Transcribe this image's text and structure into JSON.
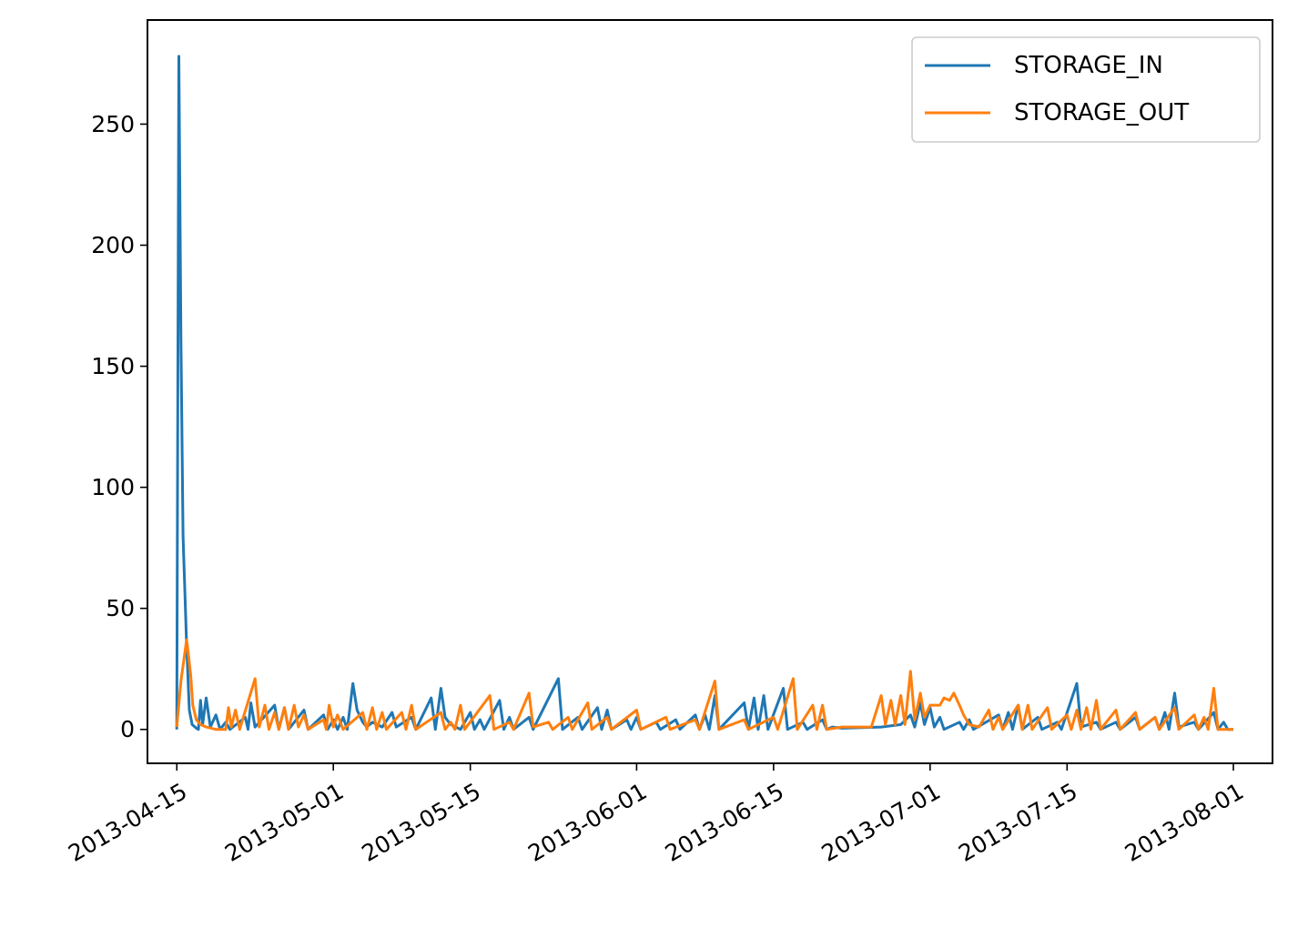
{
  "chart_data": {
    "type": "line",
    "title": "",
    "xlabel": "",
    "ylabel": "",
    "x_type": "date",
    "xlim": [
      "2013-04-12",
      "2013-08-05"
    ],
    "ylim": [
      -14,
      293
    ],
    "grid": false,
    "legend_position": "top-right",
    "x_ticks": [
      "2013-04-15",
      "2013-05-01",
      "2013-05-15",
      "2013-06-01",
      "2013-06-15",
      "2013-07-01",
      "2013-07-15",
      "2013-08-01"
    ],
    "y_ticks": [
      0,
      50,
      100,
      150,
      200,
      250
    ],
    "series": [
      {
        "name": "STORAGE_IN",
        "color": "#1f77b4",
        "points": [
          [
            "2013-04-15",
            0
          ],
          [
            "2013-04-15",
            278
          ],
          [
            "2013-04-15",
            160
          ],
          [
            "2013-04-15",
            80
          ],
          [
            "2013-04-16",
            35
          ],
          [
            "2013-04-16",
            8
          ],
          [
            "2013-04-16",
            2
          ],
          [
            "2013-04-17",
            0.5
          ],
          [
            "2013-04-17",
            0
          ],
          [
            "2013-04-17",
            12
          ],
          [
            "2013-04-17",
            2
          ],
          [
            "2013-04-18",
            13
          ],
          [
            "2013-04-18",
            1
          ],
          [
            "2013-04-19",
            6
          ],
          [
            "2013-04-19",
            0
          ],
          [
            "2013-04-20",
            3
          ],
          [
            "2013-04-20",
            0
          ],
          [
            "2013-04-22",
            5
          ],
          [
            "2013-04-22",
            0
          ],
          [
            "2013-04-22",
            11
          ],
          [
            "2013-04-23",
            1
          ],
          [
            "2013-04-25",
            10
          ],
          [
            "2013-04-25",
            0
          ],
          [
            "2013-04-26",
            9
          ],
          [
            "2013-04-26",
            0
          ],
          [
            "2013-04-28",
            8
          ],
          [
            "2013-04-28",
            0
          ],
          [
            "2013-04-30",
            6
          ],
          [
            "2013-04-30",
            0
          ],
          [
            "2013-05-01",
            4
          ],
          [
            "2013-05-01",
            0
          ],
          [
            "2013-05-02",
            5
          ],
          [
            "2013-05-02",
            0
          ],
          [
            "2013-05-03",
            19
          ],
          [
            "2013-05-03",
            8
          ],
          [
            "2013-05-04",
            3
          ],
          [
            "2013-05-04",
            1
          ],
          [
            "2013-05-05",
            3
          ],
          [
            "2013-05-06",
            1
          ],
          [
            "2013-05-07",
            7
          ],
          [
            "2013-05-07",
            1
          ],
          [
            "2013-05-09",
            5
          ],
          [
            "2013-05-09",
            0
          ],
          [
            "2013-05-11",
            13
          ],
          [
            "2013-05-11",
            0
          ],
          [
            "2013-05-12",
            17
          ],
          [
            "2013-05-12",
            5
          ],
          [
            "2013-05-13",
            2
          ],
          [
            "2013-05-14",
            0
          ],
          [
            "2013-05-15",
            7
          ],
          [
            "2013-05-15",
            0
          ],
          [
            "2013-05-16",
            4
          ],
          [
            "2013-05-16",
            0
          ],
          [
            "2013-05-18",
            12
          ],
          [
            "2013-05-18",
            0
          ],
          [
            "2013-05-19",
            5
          ],
          [
            "2013-05-19",
            0
          ],
          [
            "2013-05-21",
            5
          ],
          [
            "2013-05-21",
            0
          ],
          [
            "2013-05-24",
            21
          ],
          [
            "2013-05-24",
            0
          ],
          [
            "2013-05-26",
            5
          ],
          [
            "2013-05-26",
            0
          ],
          [
            "2013-05-28",
            9
          ],
          [
            "2013-05-28",
            0
          ],
          [
            "2013-05-29",
            8
          ],
          [
            "2013-05-29",
            0
          ],
          [
            "2013-05-31",
            4
          ],
          [
            "2013-05-31",
            0
          ],
          [
            "2013-06-01",
            5
          ],
          [
            "2013-06-01",
            0
          ],
          [
            "2013-06-03",
            3
          ],
          [
            "2013-06-03",
            0
          ],
          [
            "2013-06-05",
            4
          ],
          [
            "2013-06-05",
            0
          ],
          [
            "2013-06-07",
            6
          ],
          [
            "2013-06-07",
            0
          ],
          [
            "2013-06-08",
            6
          ],
          [
            "2013-06-08",
            0
          ],
          [
            "2013-06-09",
            14
          ],
          [
            "2013-06-09",
            0
          ],
          [
            "2013-06-12",
            11
          ],
          [
            "2013-06-12",
            0
          ],
          [
            "2013-06-13",
            13
          ],
          [
            "2013-06-13",
            0
          ],
          [
            "2013-06-14",
            14
          ],
          [
            "2013-06-14",
            0
          ],
          [
            "2013-06-16",
            17
          ],
          [
            "2013-06-16",
            0
          ],
          [
            "2013-06-18",
            3
          ],
          [
            "2013-06-18",
            0
          ],
          [
            "2013-06-20",
            4
          ],
          [
            "2013-06-20",
            0
          ],
          [
            "2013-06-21",
            1
          ],
          [
            "2013-06-22",
            0.5
          ],
          [
            "2013-06-26",
            1
          ],
          [
            "2013-06-28",
            2
          ],
          [
            "2013-06-29",
            6
          ],
          [
            "2013-06-29",
            1
          ],
          [
            "2013-06-30",
            11
          ],
          [
            "2013-06-30",
            2
          ],
          [
            "2013-07-01",
            9
          ],
          [
            "2013-07-01",
            1
          ],
          [
            "2013-07-02",
            5
          ],
          [
            "2013-07-02",
            0
          ],
          [
            "2013-07-04",
            3
          ],
          [
            "2013-07-04",
            0
          ],
          [
            "2013-07-05",
            4
          ],
          [
            "2013-07-05",
            0
          ],
          [
            "2013-07-08",
            6
          ],
          [
            "2013-07-08",
            0
          ],
          [
            "2013-07-09",
            7
          ],
          [
            "2013-07-09",
            0
          ],
          [
            "2013-07-10",
            10
          ],
          [
            "2013-07-10",
            0
          ],
          [
            "2013-07-12",
            5
          ],
          [
            "2013-07-12",
            0
          ],
          [
            "2013-07-14",
            3
          ],
          [
            "2013-07-14",
            0
          ],
          [
            "2013-07-16",
            19
          ],
          [
            "2013-07-16",
            1
          ],
          [
            "2013-07-18",
            3
          ],
          [
            "2013-07-18",
            0
          ],
          [
            "2013-07-20",
            3
          ],
          [
            "2013-07-20",
            0
          ],
          [
            "2013-07-22",
            5
          ],
          [
            "2013-07-22",
            0
          ],
          [
            "2013-07-24",
            5
          ],
          [
            "2013-07-24",
            0
          ],
          [
            "2013-07-25",
            7
          ],
          [
            "2013-07-25",
            0
          ],
          [
            "2013-07-26",
            15
          ],
          [
            "2013-07-26",
            1
          ],
          [
            "2013-07-28",
            3
          ],
          [
            "2013-07-28",
            0
          ],
          [
            "2013-07-30",
            7
          ],
          [
            "2013-07-30",
            0
          ],
          [
            "2013-07-31",
            3
          ],
          [
            "2013-07-31",
            0
          ],
          [
            "2013-08-01",
            0
          ]
        ]
      },
      {
        "name": "STORAGE_OUT",
        "color": "#ff7f0e",
        "points": [
          [
            "2013-04-15",
            1
          ],
          [
            "2013-04-15",
            20
          ],
          [
            "2013-04-16",
            37
          ],
          [
            "2013-04-16",
            30
          ],
          [
            "2013-04-16",
            22
          ],
          [
            "2013-04-16",
            10
          ],
          [
            "2013-04-17",
            4
          ],
          [
            "2013-04-17",
            2
          ],
          [
            "2013-04-18",
            1
          ],
          [
            "2013-04-19",
            0
          ],
          [
            "2013-04-20",
            0
          ],
          [
            "2013-04-20",
            9
          ],
          [
            "2013-04-20",
            1
          ],
          [
            "2013-04-21",
            8
          ],
          [
            "2013-04-21",
            0
          ],
          [
            "2013-04-23",
            21
          ],
          [
            "2013-04-23",
            1
          ],
          [
            "2013-04-24",
            10
          ],
          [
            "2013-04-24",
            0
          ],
          [
            "2013-04-25",
            7
          ],
          [
            "2013-04-25",
            0
          ],
          [
            "2013-04-26",
            9
          ],
          [
            "2013-04-26",
            0
          ],
          [
            "2013-04-27",
            10
          ],
          [
            "2013-04-27",
            1
          ],
          [
            "2013-04-28",
            6
          ],
          [
            "2013-04-28",
            0
          ],
          [
            "2013-04-30",
            4
          ],
          [
            "2013-04-30",
            0
          ],
          [
            "2013-04-30",
            10
          ],
          [
            "2013-05-01",
            1
          ],
          [
            "2013-05-01",
            6
          ],
          [
            "2013-05-02",
            0
          ],
          [
            "2013-05-04",
            7
          ],
          [
            "2013-05-04",
            0
          ],
          [
            "2013-05-05",
            9
          ],
          [
            "2013-05-05",
            0
          ],
          [
            "2013-05-06",
            7
          ],
          [
            "2013-05-06",
            0
          ],
          [
            "2013-05-08",
            7
          ],
          [
            "2013-05-08",
            0
          ],
          [
            "2013-05-09",
            10
          ],
          [
            "2013-05-09",
            0
          ],
          [
            "2013-05-12",
            7
          ],
          [
            "2013-05-12",
            0
          ],
          [
            "2013-05-13",
            3
          ],
          [
            "2013-05-13",
            0
          ],
          [
            "2013-05-14",
            10
          ],
          [
            "2013-05-14",
            0
          ],
          [
            "2013-05-17",
            14
          ],
          [
            "2013-05-17",
            0
          ],
          [
            "2013-05-19",
            3
          ],
          [
            "2013-05-19",
            0
          ],
          [
            "2013-05-21",
            15
          ],
          [
            "2013-05-21",
            1
          ],
          [
            "2013-05-23",
            3
          ],
          [
            "2013-05-23",
            0
          ],
          [
            "2013-05-25",
            5
          ],
          [
            "2013-05-25",
            0
          ],
          [
            "2013-05-27",
            11
          ],
          [
            "2013-05-27",
            0
          ],
          [
            "2013-05-29",
            5
          ],
          [
            "2013-05-29",
            0
          ],
          [
            "2013-06-01",
            8
          ],
          [
            "2013-06-01",
            0
          ],
          [
            "2013-06-04",
            5
          ],
          [
            "2013-06-04",
            0
          ],
          [
            "2013-06-07",
            4
          ],
          [
            "2013-06-07",
            0
          ],
          [
            "2013-06-09",
            20
          ],
          [
            "2013-06-09",
            0
          ],
          [
            "2013-06-12",
            4
          ],
          [
            "2013-06-12",
            0
          ],
          [
            "2013-06-15",
            5
          ],
          [
            "2013-06-15",
            0
          ],
          [
            "2013-06-17",
            21
          ],
          [
            "2013-06-17",
            0
          ],
          [
            "2013-06-19",
            10
          ],
          [
            "2013-06-19",
            0
          ],
          [
            "2013-06-20",
            10
          ],
          [
            "2013-06-20",
            0
          ],
          [
            "2013-06-22",
            1
          ],
          [
            "2013-06-25",
            1
          ],
          [
            "2013-06-26",
            14
          ],
          [
            "2013-06-26",
            2
          ],
          [
            "2013-06-27",
            12
          ],
          [
            "2013-06-27",
            2
          ],
          [
            "2013-06-28",
            14
          ],
          [
            "2013-06-28",
            2
          ],
          [
            "2013-06-29",
            24
          ],
          [
            "2013-06-29",
            4
          ],
          [
            "2013-06-30",
            15
          ],
          [
            "2013-06-30",
            5
          ],
          [
            "2013-07-01",
            10
          ],
          [
            "2013-07-02",
            10
          ],
          [
            "2013-07-02",
            13
          ],
          [
            "2013-07-03",
            12
          ],
          [
            "2013-07-03",
            15
          ],
          [
            "2013-07-04",
            10
          ],
          [
            "2013-07-04",
            6
          ],
          [
            "2013-07-05",
            2
          ],
          [
            "2013-07-06",
            1
          ],
          [
            "2013-07-07",
            8
          ],
          [
            "2013-07-07",
            0
          ],
          [
            "2013-07-08",
            5
          ],
          [
            "2013-07-08",
            0
          ],
          [
            "2013-07-10",
            10
          ],
          [
            "2013-07-10",
            0
          ],
          [
            "2013-07-11",
            10
          ],
          [
            "2013-07-11",
            0
          ],
          [
            "2013-07-13",
            9
          ],
          [
            "2013-07-13",
            0
          ],
          [
            "2013-07-15",
            6
          ],
          [
            "2013-07-15",
            0
          ],
          [
            "2013-07-16",
            8
          ],
          [
            "2013-07-16",
            0
          ],
          [
            "2013-07-17",
            9
          ],
          [
            "2013-07-17",
            0
          ],
          [
            "2013-07-18",
            12
          ],
          [
            "2013-07-18",
            0
          ],
          [
            "2013-07-20",
            8
          ],
          [
            "2013-07-20",
            0
          ],
          [
            "2013-07-22",
            7
          ],
          [
            "2013-07-22",
            0
          ],
          [
            "2013-07-24",
            5
          ],
          [
            "2013-07-24",
            0
          ],
          [
            "2013-07-26",
            9
          ],
          [
            "2013-07-26",
            0
          ],
          [
            "2013-07-28",
            6
          ],
          [
            "2013-07-28",
            0
          ],
          [
            "2013-07-29",
            5
          ],
          [
            "2013-07-29",
            0
          ],
          [
            "2013-07-30",
            17
          ],
          [
            "2013-07-30",
            0
          ],
          [
            "2013-08-01",
            0
          ]
        ]
      }
    ]
  }
}
